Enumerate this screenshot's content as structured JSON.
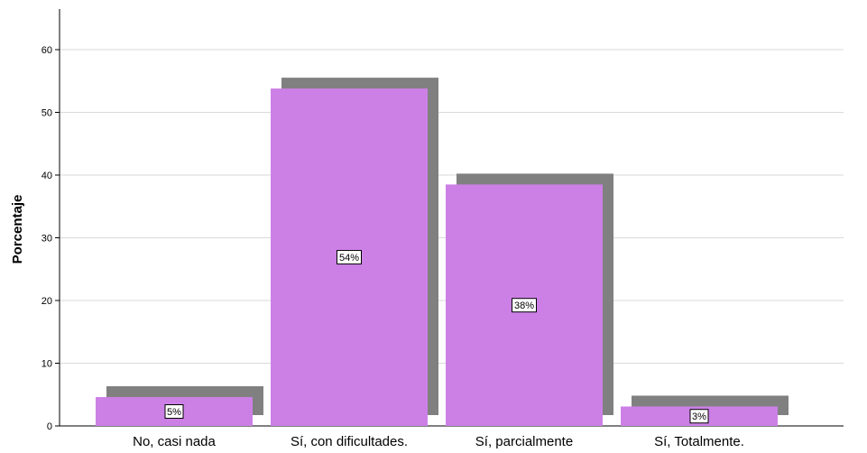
{
  "chart_data": {
    "type": "bar",
    "categories": [
      "No, casi nada",
      "Sí, con dificultades.",
      "Sí, parcialmente",
      "Sí, Totalmente."
    ],
    "values": [
      4.6,
      53.8,
      38.5,
      3.1
    ],
    "data_labels": [
      "5%",
      "54%",
      "38%",
      "3%"
    ],
    "ylabel": "Porcentaje",
    "ylim": [
      0,
      66
    ],
    "yticks": [
      0,
      10,
      20,
      30,
      40,
      50,
      60
    ],
    "grid": true,
    "bar_color": "#cc80e6",
    "shadow_color": "#808080"
  }
}
